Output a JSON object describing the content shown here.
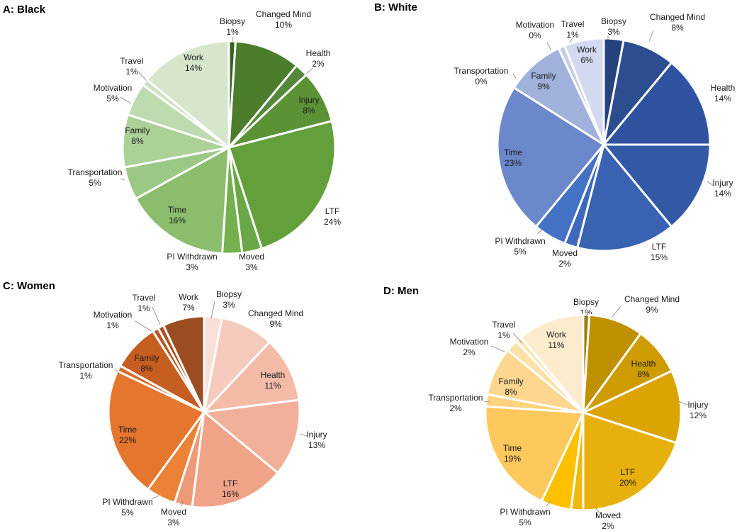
{
  "chart_data": [
    {
      "type": "pie",
      "title": "A: Black",
      "slices": [
        {
          "label": "Biopsy",
          "value": 1,
          "pct": "1%",
          "color": "#35641f"
        },
        {
          "label": "Changed Mind",
          "value": 10,
          "pct": "10%",
          "color": "#4b7d2c"
        },
        {
          "label": "Health",
          "value": 2,
          "pct": "2%",
          "color": "#54883a"
        },
        {
          "label": "Injury",
          "value": 8,
          "pct": "8%",
          "color": "#5b9236"
        },
        {
          "label": "LTF",
          "value": 24,
          "pct": "24%",
          "color": "#63a03c"
        },
        {
          "label": "Moved",
          "value": 3,
          "pct": "3%",
          "color": "#6aa847"
        },
        {
          "label": "PI Withdrawn",
          "value": 3,
          "pct": "3%",
          "color": "#74b14e"
        },
        {
          "label": "Time",
          "value": 16,
          "pct": "16%",
          "color": "#8bbd6d"
        },
        {
          "label": "Transportation",
          "value": 5,
          "pct": "5%",
          "color": "#9cc886"
        },
        {
          "label": "Family",
          "value": 8,
          "pct": "8%",
          "color": "#abd197"
        },
        {
          "label": "Motivation",
          "value": 5,
          "pct": "5%",
          "color": "#bddbae"
        },
        {
          "label": "Travel",
          "value": 1,
          "pct": "1%",
          "color": "#cbe3c0"
        },
        {
          "label": "Work",
          "value": 14,
          "pct": "14%",
          "color": "#d6e6cd"
        }
      ]
    },
    {
      "type": "pie",
      "title": "B: White",
      "slices": [
        {
          "label": "Biopsy",
          "value": 3,
          "pct": "3%",
          "color": "#26427c"
        },
        {
          "label": "Changed Mind",
          "value": 8,
          "pct": "8%",
          "color": "#2c4d8f"
        },
        {
          "label": "Health",
          "value": 14,
          "pct": "14%",
          "color": "#2f53a0"
        },
        {
          "label": "Injury",
          "value": 14,
          "pct": "14%",
          "color": "#3359a6"
        },
        {
          "label": "LTF",
          "value": 15,
          "pct": "15%",
          "color": "#3a62b2"
        },
        {
          "label": "Moved",
          "value": 2,
          "pct": "2%",
          "color": "#3e67be"
        },
        {
          "label": "PI Withdrawn",
          "value": 5,
          "pct": "5%",
          "color": "#4472c4"
        },
        {
          "label": "Time",
          "value": 23,
          "pct": "23%",
          "color": "#6b88ca"
        },
        {
          "label": "Transportation",
          "value": 0,
          "pct": "0%",
          "color": "#8ea3d6"
        },
        {
          "label": "Family",
          "value": 9,
          "pct": "9%",
          "color": "#a0b1dc"
        },
        {
          "label": "Motivation",
          "value": 0,
          "pct": "0%",
          "color": "#b4c0e2"
        },
        {
          "label": "Travel",
          "value": 1,
          "pct": "1%",
          "color": "#c4cde8"
        },
        {
          "label": "Work",
          "value": 6,
          "pct": "6%",
          "color": "#d3d9ee"
        }
      ]
    },
    {
      "type": "pie",
      "title": "C: Women",
      "slices": [
        {
          "label": "Biopsy",
          "value": 3,
          "pct": "3%",
          "color": "#fadfd6"
        },
        {
          "label": "Changed Mind",
          "value": 9,
          "pct": "9%",
          "color": "#f6cbbd"
        },
        {
          "label": "Health",
          "value": 11,
          "pct": "11%",
          "color": "#f4bba6"
        },
        {
          "label": "Injury",
          "value": 13,
          "pct": "13%",
          "color": "#f2b09a"
        },
        {
          "label": "LTF",
          "value": 16,
          "pct": "16%",
          "color": "#f0a387"
        },
        {
          "label": "Moved",
          "value": 3,
          "pct": "3%",
          "color": "#ee9a78"
        },
        {
          "label": "PI Withdrawn",
          "value": 5,
          "pct": "5%",
          "color": "#ec8236"
        },
        {
          "label": "Time",
          "value": 22,
          "pct": "22%",
          "color": "#e4762e"
        },
        {
          "label": "Transportation",
          "value": 1,
          "pct": "1%",
          "color": "#da6d2a"
        },
        {
          "label": "Family",
          "value": 8,
          "pct": "8%",
          "color": "#c65e22"
        },
        {
          "label": "Motivation",
          "value": 1,
          "pct": "1%",
          "color": "#b85722"
        },
        {
          "label": "Travel",
          "value": 1,
          "pct": "1%",
          "color": "#ad5221"
        },
        {
          "label": "Work",
          "value": 7,
          "pct": "7%",
          "color": "#9b4c20"
        }
      ]
    },
    {
      "type": "pie",
      "title": "D: Men",
      "slices": [
        {
          "label": "Biopsy",
          "value": 1,
          "pct": "1%",
          "color": "#9e7a00"
        },
        {
          "label": "Changed Mind",
          "value": 9,
          "pct": "9%",
          "color": "#bf9000"
        },
        {
          "label": "Health",
          "value": 8,
          "pct": "8%",
          "color": "#cf9c00"
        },
        {
          "label": "Injury",
          "value": 12,
          "pct": "12%",
          "color": "#dba400"
        },
        {
          "label": "LTF",
          "value": 20,
          "pct": "20%",
          "color": "#e8b00c"
        },
        {
          "label": "Moved",
          "value": 2,
          "pct": "2%",
          "color": "#f0b90d"
        },
        {
          "label": "PI Withdrawn",
          "value": 5,
          "pct": "5%",
          "color": "#ffc000"
        },
        {
          "label": "Time",
          "value": 19,
          "pct": "19%",
          "color": "#fdc85c"
        },
        {
          "label": "Transportation",
          "value": 2,
          "pct": "2%",
          "color": "#fdd37c"
        },
        {
          "label": "Family",
          "value": 8,
          "pct": "8%",
          "color": "#fdd790"
        },
        {
          "label": "Motivation",
          "value": 2,
          "pct": "2%",
          "color": "#fde1a7"
        },
        {
          "label": "Travel",
          "value": 1,
          "pct": "1%",
          "color": "#fde6b6"
        },
        {
          "label": "Work",
          "value": 11,
          "pct": "11%",
          "color": "#fdebcd"
        }
      ]
    }
  ]
}
